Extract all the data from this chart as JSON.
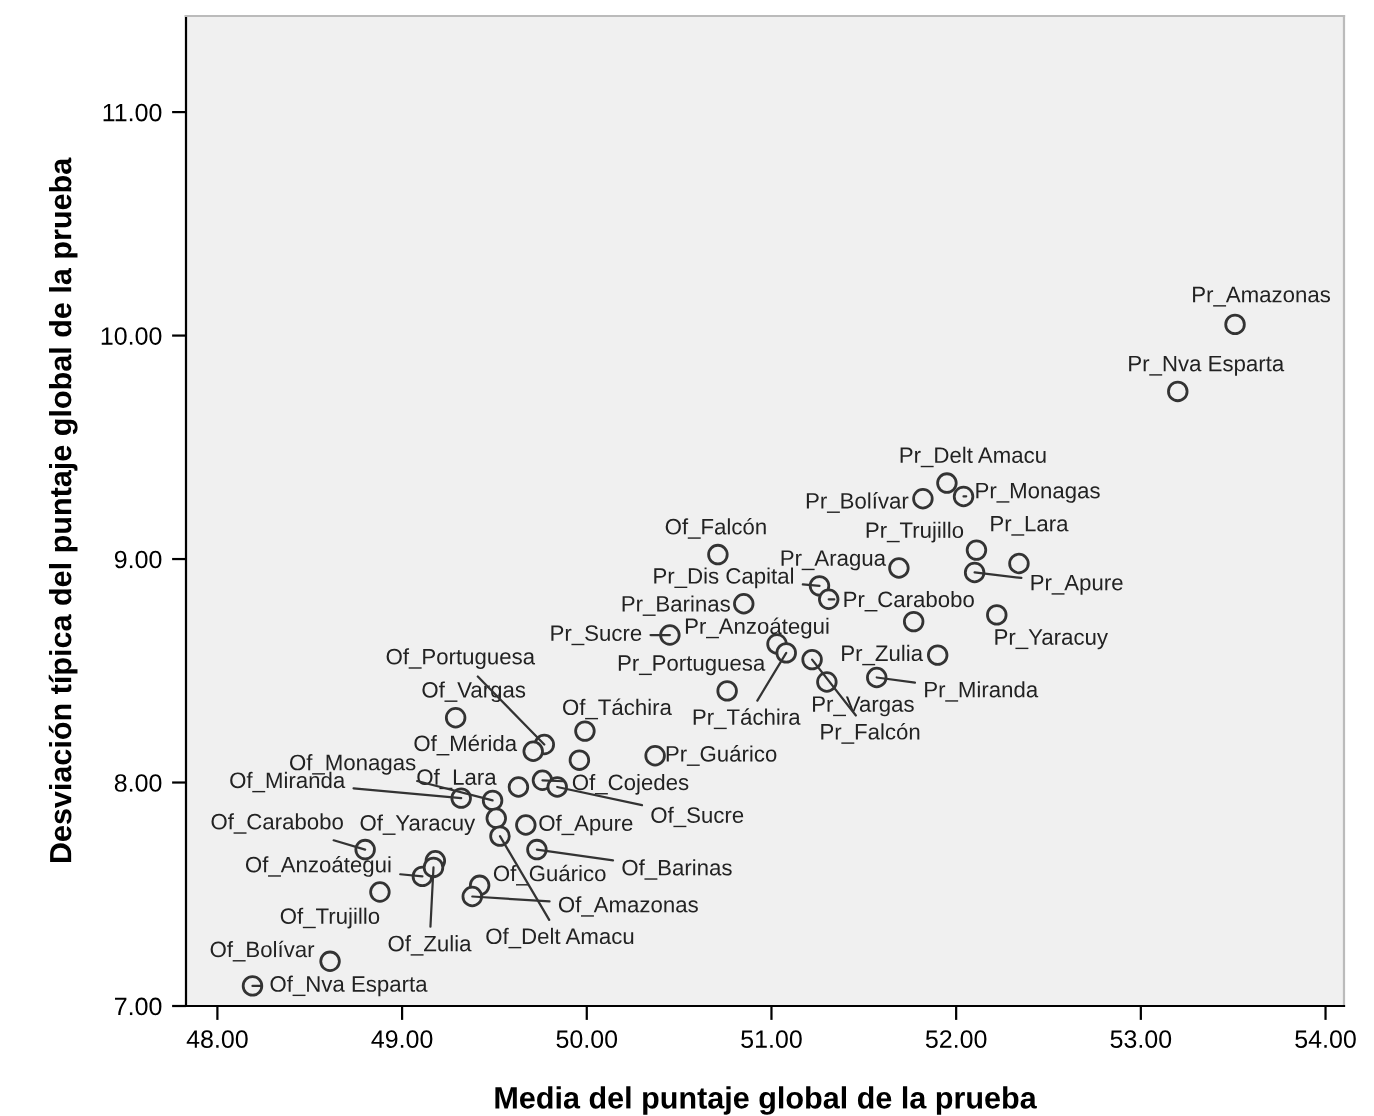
{
  "chart_data": {
    "type": "scatter",
    "xlabel": "Media del puntaje global de la prueba",
    "ylabel": "Desviación típica del puntaje global de la prueba",
    "marker": "circle",
    "grid": false,
    "xlim": [
      47.83,
      54.1
    ],
    "ylim": [
      7.0,
      11.43
    ],
    "xticks": [
      {
        "value": 48,
        "label": "48.00"
      },
      {
        "value": 49,
        "label": "49.00"
      },
      {
        "value": 50,
        "label": "50.00"
      },
      {
        "value": 51,
        "label": "51.00"
      },
      {
        "value": 52,
        "label": "52.00"
      },
      {
        "value": 53,
        "label": "53.00"
      },
      {
        "value": 54,
        "label": "54.00"
      }
    ],
    "yticks": [
      {
        "value": 7,
        "label": "7.00"
      },
      {
        "value": 8,
        "label": "8.00"
      },
      {
        "value": 9,
        "label": "9.00"
      },
      {
        "value": 10,
        "label": "10.00"
      },
      {
        "value": 11,
        "label": "11.00"
      }
    ],
    "series": [
      {
        "color": "#333333",
        "x": [
          49.29,
          49.77,
          49.71,
          49.99,
          49.96,
          49.63,
          49.76,
          49.84,
          49.32,
          49.49,
          49.51,
          49.53,
          49.67,
          49.73,
          48.8,
          49.18,
          49.11,
          49.17,
          49.42,
          49.38,
          48.88,
          48.61,
          48.19,
          50.71,
          53.51,
          53.2,
          51.95,
          51.82,
          52.04,
          52.11,
          52.34,
          52.1,
          51.69,
          51.26,
          50.85,
          51.31,
          51.77,
          50.45,
          51.03,
          51.08,
          51.22,
          51.9,
          51.57,
          52.22,
          51.3,
          50.76,
          50.37
        ],
        "values": [
          8.29,
          8.17,
          8.14,
          8.23,
          8.1,
          7.98,
          8.01,
          7.98,
          7.93,
          7.92,
          7.84,
          7.76,
          7.81,
          7.7,
          7.7,
          7.65,
          7.58,
          7.62,
          7.54,
          7.49,
          7.51,
          7.2,
          7.09,
          9.02,
          10.05,
          9.75,
          9.34,
          9.27,
          9.28,
          9.04,
          8.98,
          8.94,
          8.96,
          8.88,
          8.8,
          8.82,
          8.72,
          8.66,
          8.62,
          8.58,
          8.55,
          8.57,
          8.47,
          8.75,
          8.45,
          8.41,
          8.12
        ]
      }
    ],
    "annotations": [
      {
        "text": "Of_Vargas",
        "x": 49.29,
        "y": 8.29
      },
      {
        "text": "Of_Portuguesa",
        "x": 49.77,
        "y": 8.17
      },
      {
        "text": "Of_Mérida",
        "x": 49.71,
        "y": 8.14
      },
      {
        "text": "Of_Táchira",
        "x": 49.99,
        "y": 8.23
      },
      {
        "text": "Of_Lara",
        "x": 49.63,
        "y": 7.98
      },
      {
        "text": "Of_Monagas",
        "x": 49.49,
        "y": 7.92
      },
      {
        "text": "Of_Cojedes",
        "x": 49.76,
        "y": 8.01
      },
      {
        "text": "Of_Sucre",
        "x": 49.84,
        "y": 7.98
      },
      {
        "text": "Of_Miranda",
        "x": 49.32,
        "y": 7.93
      },
      {
        "text": "Of_Carabobo",
        "x": 48.8,
        "y": 7.7
      },
      {
        "text": "Of_Yaracuy",
        "x": 49.18,
        "y": 7.65
      },
      {
        "text": "Of_Apure",
        "x": 49.67,
        "y": 7.81
      },
      {
        "text": "Of_Barinas",
        "x": 49.73,
        "y": 7.7
      },
      {
        "text": "Of_Anzoátegui",
        "x": 49.11,
        "y": 7.58
      },
      {
        "text": "Of_Guárico",
        "x": 49.42,
        "y": 7.54
      },
      {
        "text": "Of_Amazonas",
        "x": 49.38,
        "y": 7.49
      },
      {
        "text": "Of_Trujillo",
        "x": 48.88,
        "y": 7.51
      },
      {
        "text": "Of_Zulia",
        "x": 49.17,
        "y": 7.62
      },
      {
        "text": "Of_Delt Amacu",
        "x": 49.53,
        "y": 7.76
      },
      {
        "text": "Of_Bolívar",
        "x": 48.61,
        "y": 7.2
      },
      {
        "text": "Of_Nva Esparta",
        "x": 48.19,
        "y": 7.09
      },
      {
        "text": "Of_Falcón",
        "x": 50.71,
        "y": 9.02
      },
      {
        "text": "Pr_Amazonas",
        "x": 53.51,
        "y": 10.05
      },
      {
        "text": "Pr_Nva Esparta",
        "x": 53.2,
        "y": 9.75
      },
      {
        "text": "Pr_Delt Amacu",
        "x": 51.95,
        "y": 9.34
      },
      {
        "text": "Pr_Bolívar",
        "x": 51.82,
        "y": 9.27
      },
      {
        "text": "Pr_Monagas",
        "x": 52.04,
        "y": 9.28
      },
      {
        "text": "Pr_Trujillo",
        "x": 52.11,
        "y": 9.04
      },
      {
        "text": "Pr_Lara",
        "x": 52.34,
        "y": 8.98
      },
      {
        "text": "Pr_Apure",
        "x": 52.1,
        "y": 8.94
      },
      {
        "text": "Pr_Aragua",
        "x": 51.69,
        "y": 8.96
      },
      {
        "text": "Pr_Dis Capital",
        "x": 51.26,
        "y": 8.88
      },
      {
        "text": "Pr_Barinas",
        "x": 50.85,
        "y": 8.8
      },
      {
        "text": "Pr_Carabobo",
        "x": 51.31,
        "y": 8.82
      },
      {
        "text": "Pr_Sucre",
        "x": 50.45,
        "y": 8.66
      },
      {
        "text": "Pr_Anzoátegui",
        "x": 51.03,
        "y": 8.62
      },
      {
        "text": "Pr_Zulia",
        "x": 51.9,
        "y": 8.57
      },
      {
        "text": "Pr_Miranda",
        "x": 51.57,
        "y": 8.47
      },
      {
        "text": "Pr_Yaracuy",
        "x": 52.22,
        "y": 8.75
      },
      {
        "text": "Pr_Vargas",
        "x": 51.3,
        "y": 8.45
      },
      {
        "text": "Pr_Falcón",
        "x": 51.22,
        "y": 8.55
      },
      {
        "text": "Pr_Táchira",
        "x": 51.08,
        "y": 8.58
      },
      {
        "text": "Pr_Portuguesa",
        "x": 50.76,
        "y": 8.41
      },
      {
        "text": "Pr_Guárico",
        "x": 50.37,
        "y": 8.12
      }
    ]
  }
}
